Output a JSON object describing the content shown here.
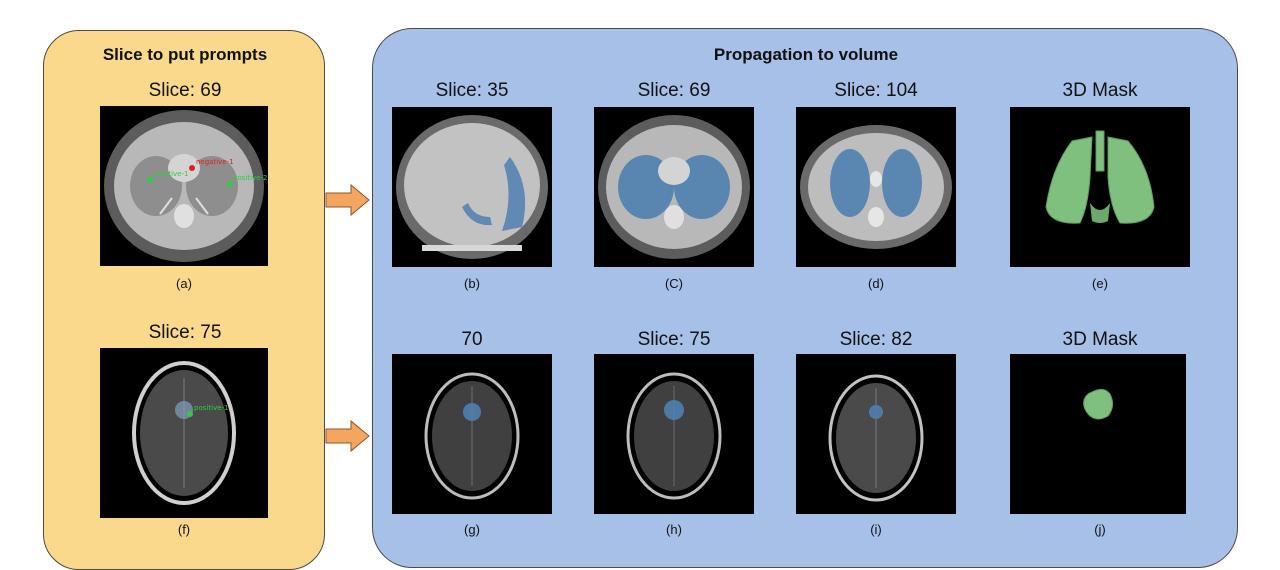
{
  "left_panel": {
    "title": "Slice to put prompts",
    "fill_color": "#fad98c",
    "rows": [
      {
        "slice_title": "Slice: 69",
        "caption": "(a)",
        "modality": "ct-chest",
        "prompt_labels": [
          "negative-1",
          "positive-1",
          "positive-2"
        ]
      },
      {
        "slice_title": "Slice: 75",
        "caption": "(f)",
        "modality": "mri-brain",
        "prompt_labels": [
          "positive-1"
        ]
      }
    ]
  },
  "right_panel": {
    "title": "Propagation to volume",
    "fill_color": "#a7c0e8",
    "rows": [
      [
        {
          "slice_title": "Slice: 35",
          "caption": "(b)"
        },
        {
          "slice_title": "Slice: 69",
          "caption": "(C)"
        },
        {
          "slice_title": "Slice: 104",
          "caption": "(d)"
        },
        {
          "slice_title": "3D Mask",
          "caption": "(e)"
        }
      ],
      [
        {
          "slice_title": "70",
          "caption": "(g)"
        },
        {
          "slice_title": "Slice: 75",
          "caption": "(h)"
        },
        {
          "slice_title": "Slice: 82",
          "caption": "(i)"
        },
        {
          "slice_title": "3D Mask",
          "caption": "(j)"
        }
      ]
    ]
  },
  "colors": {
    "mask_blue": "#4f7fb0",
    "mask_green": "#7fc07f",
    "prompt_positive": "#2ecc40",
    "prompt_negative": "#e02020",
    "arrow_fill": "#f4a55f"
  },
  "icons": {
    "arrow": "right-arrow-icon"
  }
}
